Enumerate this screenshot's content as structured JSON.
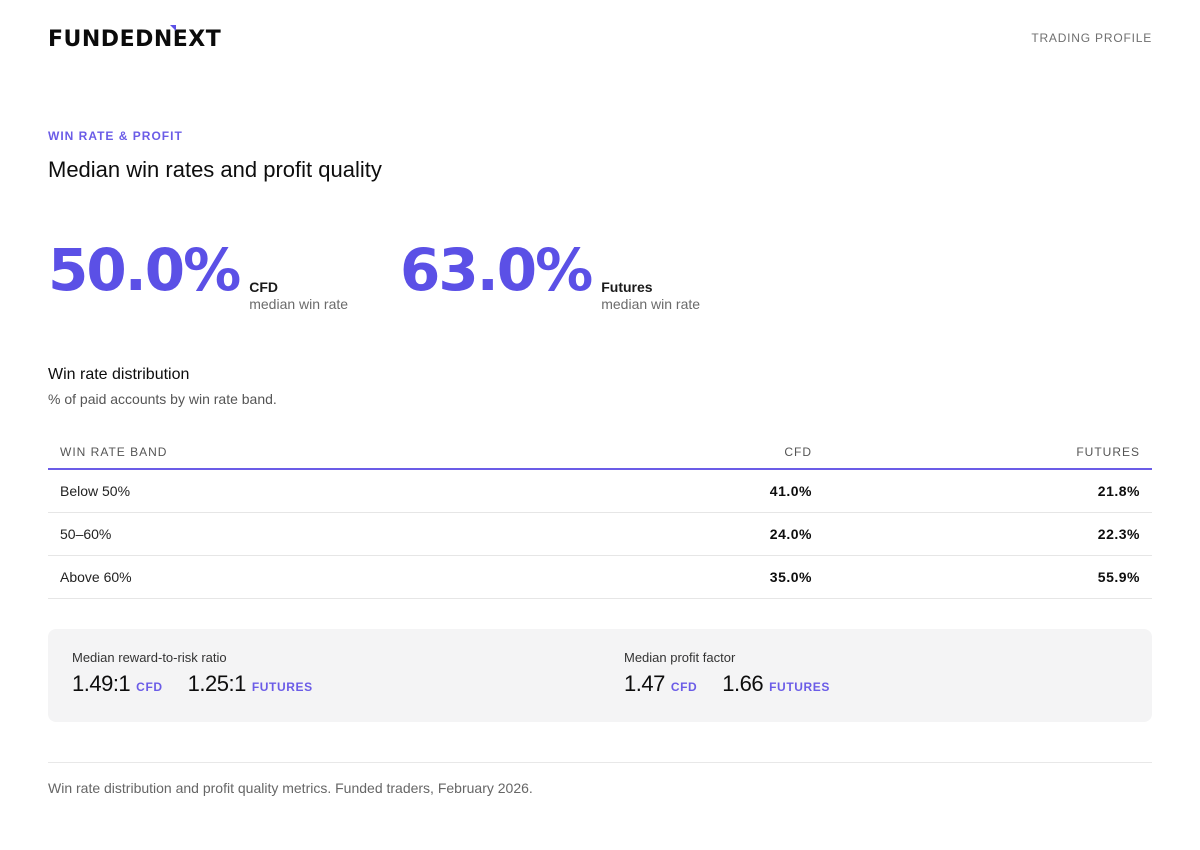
{
  "header": {
    "logo_text": "FUNDEDNEXT",
    "logo_part1": "FUNDED",
    "logo_part2": "N",
    "logo_part3": "EXT",
    "page_label": "TRADING PROFILE"
  },
  "section": {
    "eyebrow": "WIN RATE & PROFIT",
    "title": "Median win rates and profit quality"
  },
  "stats": [
    {
      "value": "50.0%",
      "key": "CFD",
      "caption": "median win rate"
    },
    {
      "value": "63.0%",
      "key": "Futures",
      "caption": "median win rate"
    }
  ],
  "distribution": {
    "title": "Win rate distribution",
    "subtitle": "% of paid accounts by win rate band.",
    "columns": [
      "WIN RATE BAND",
      "CFD",
      "FUTURES"
    ],
    "rows": [
      {
        "band": "Below 50%",
        "cfd": "41.0%",
        "futures": "21.8%"
      },
      {
        "band": "50–60%",
        "cfd": "24.0%",
        "futures": "22.3%"
      },
      {
        "band": "Above 60%",
        "cfd": "35.0%",
        "futures": "55.9%"
      }
    ]
  },
  "metrics": {
    "rr": {
      "label": "Median reward-to-risk ratio",
      "cfd_value": "1.49:1",
      "cfd_tag": "CFD",
      "futures_value": "1.25:1",
      "futures_tag": "FUTURES"
    },
    "pf": {
      "label": "Median profit factor",
      "cfd_value": "1.47",
      "cfd_tag": "CFD",
      "futures_value": "1.66",
      "futures_tag": "FUTURES"
    }
  },
  "footer": {
    "note": "Win rate distribution and profit quality metrics. Funded traders, February 2026."
  },
  "colors": {
    "accent": "#5b50e6",
    "accent_label": "#6b5ce7",
    "panel_bg": "#f4f4f5"
  }
}
